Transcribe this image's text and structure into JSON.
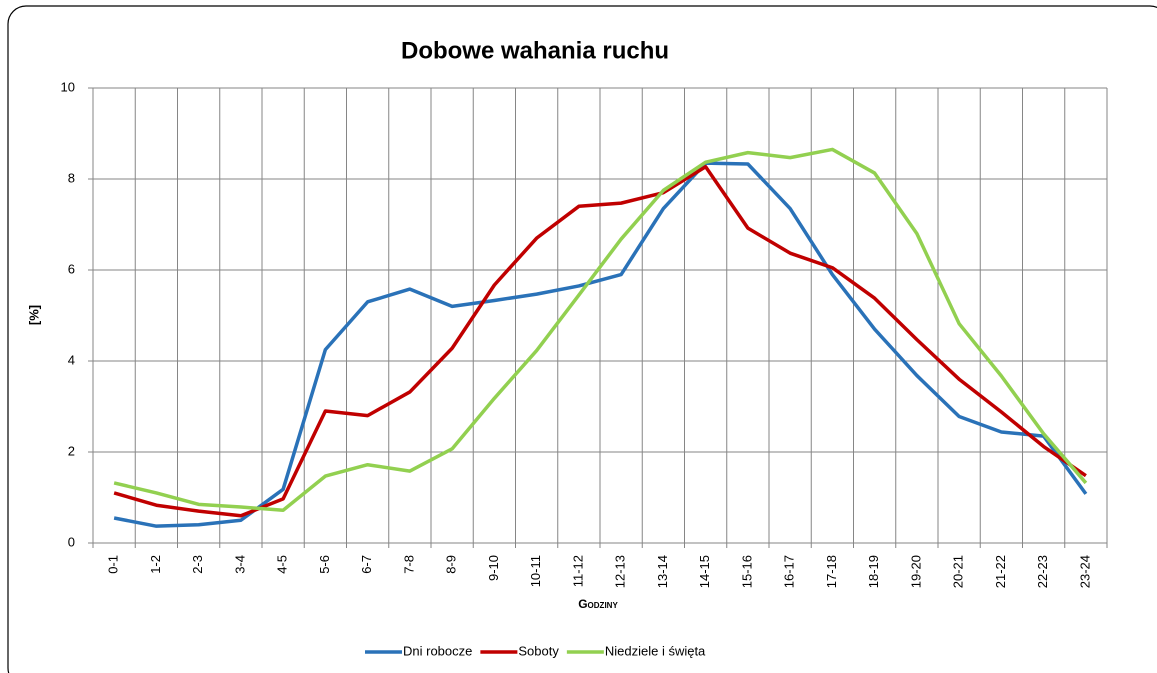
{
  "chart_data": {
    "type": "line",
    "title": "Dobowe wahania ruchu",
    "x_label": "Godziny",
    "y_label": "[%]",
    "categories": [
      "0-1",
      "1-2",
      "2-3",
      "3-4",
      "4-5",
      "5-6",
      "6-7",
      "7-8",
      "8-9",
      "9-10",
      "10-11",
      "11-12",
      "12-13",
      "13-14",
      "14-15",
      "15-16",
      "16-17",
      "17-18",
      "18-19",
      "19-20",
      "20-21",
      "21-22",
      "22-23",
      "23-24"
    ],
    "series": [
      {
        "name": "Dni robocze",
        "color": "#2a72b8",
        "values": [
          0.55,
          0.37,
          0.4,
          0.5,
          1.18,
          4.25,
          5.3,
          5.58,
          5.2,
          5.33,
          5.47,
          5.65,
          5.9,
          7.35,
          8.35,
          8.33,
          7.35,
          5.9,
          4.7,
          3.68,
          2.78,
          2.44,
          2.35,
          1.08
        ]
      },
      {
        "name": "Soboty",
        "color": "#c00000",
        "values": [
          1.1,
          0.83,
          0.7,
          0.6,
          0.97,
          2.9,
          2.8,
          3.32,
          4.28,
          5.67,
          6.7,
          7.4,
          7.47,
          7.7,
          8.27,
          6.92,
          6.37,
          6.05,
          5.38,
          4.47,
          3.6,
          2.88,
          2.12,
          1.48
        ]
      },
      {
        "name": "Niedziele i święta",
        "color": "#92d050",
        "values": [
          1.32,
          1.1,
          0.85,
          0.79,
          0.72,
          1.47,
          1.72,
          1.58,
          2.07,
          3.18,
          4.23,
          5.45,
          6.68,
          7.75,
          8.37,
          8.58,
          8.47,
          8.65,
          8.13,
          6.8,
          4.82,
          3.67,
          2.4,
          1.32
        ]
      }
    ],
    "ylim": [
      0,
      10
    ],
    "yticks": [
      0,
      2,
      4,
      6,
      8,
      10
    ],
    "grid": true,
    "legend": "bottom"
  }
}
